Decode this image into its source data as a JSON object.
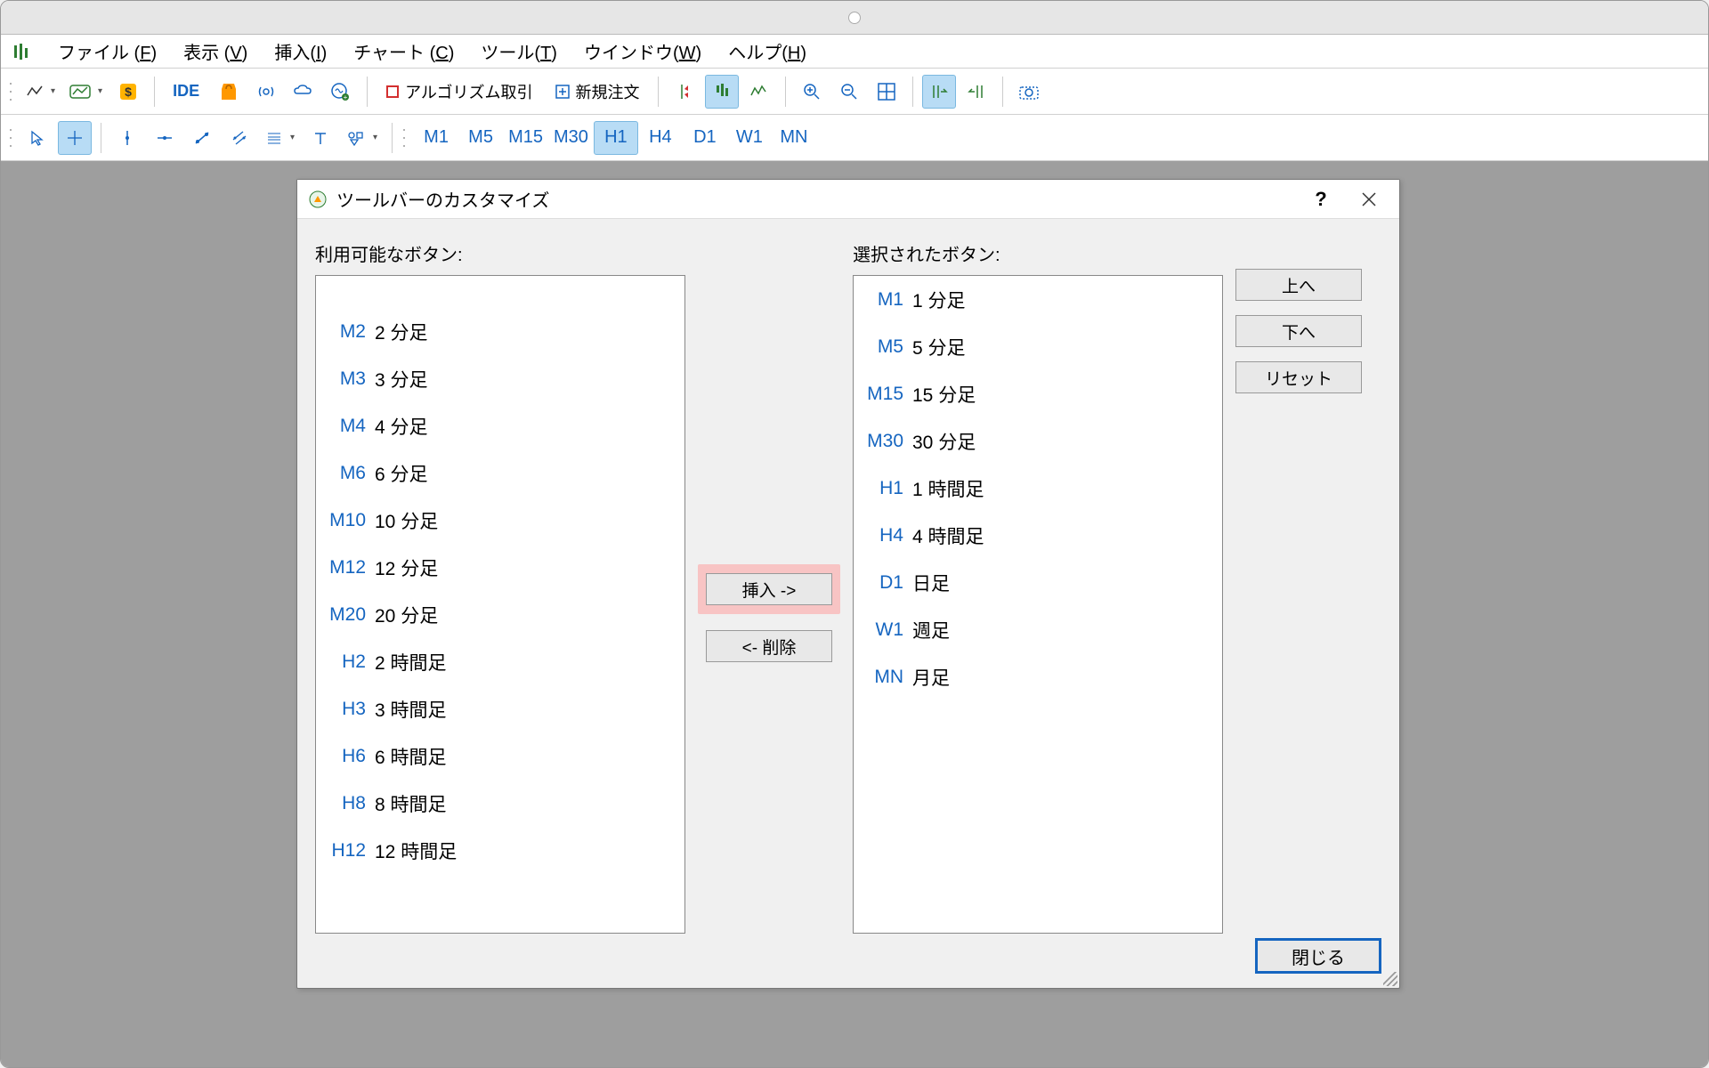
{
  "colors": {
    "accent": "#1565c0",
    "active_bg": "#b8dcf5",
    "active_border": "#7ab8e0",
    "highlight_bg": "#f8c4c4",
    "workspace_bg": "#9e9e9e",
    "dialog_bg": "#f0f0f0"
  },
  "menubar": {
    "items": [
      "ファイル (F)",
      "表示 (V)",
      "挿入(I)",
      "チャート (C)",
      "ツール(T)",
      "ウインドウ(W)",
      "ヘルプ(H)"
    ]
  },
  "toolbar1": {
    "ide_label": "IDE",
    "algo_label": "アルゴリズム取引",
    "new_order_label": "新規注文"
  },
  "timeframe_buttons": [
    "M1",
    "M5",
    "M15",
    "M30",
    "H1",
    "H4",
    "D1",
    "W1",
    "MN"
  ],
  "timeframe_active": "H1",
  "dialog": {
    "title": "ツールバーのカスタマイズ",
    "available_label": "利用可能なボタン:",
    "selected_label": "選択されたボタン:",
    "insert_label": "挿入 ->",
    "remove_label": "<- 削除",
    "up_label": "上へ",
    "down_label": "下へ",
    "reset_label": "リセット",
    "close_label": "閉じる",
    "available": [
      {
        "code": "M2",
        "desc": "2 分足"
      },
      {
        "code": "M3",
        "desc": "3 分足"
      },
      {
        "code": "M4",
        "desc": "4 分足"
      },
      {
        "code": "M6",
        "desc": "6 分足"
      },
      {
        "code": "M10",
        "desc": "10 分足"
      },
      {
        "code": "M12",
        "desc": "12 分足"
      },
      {
        "code": "M20",
        "desc": "20 分足"
      },
      {
        "code": "H2",
        "desc": "2 時間足"
      },
      {
        "code": "H3",
        "desc": "3 時間足"
      },
      {
        "code": "H6",
        "desc": "6 時間足"
      },
      {
        "code": "H8",
        "desc": "8 時間足"
      },
      {
        "code": "H12",
        "desc": "12 時間足"
      }
    ],
    "selected": [
      {
        "code": "M1",
        "desc": "1 分足"
      },
      {
        "code": "M5",
        "desc": "5 分足"
      },
      {
        "code": "M15",
        "desc": "15 分足"
      },
      {
        "code": "M30",
        "desc": "30 分足"
      },
      {
        "code": "H1",
        "desc": "1 時間足"
      },
      {
        "code": "H4",
        "desc": "4 時間足"
      },
      {
        "code": "D1",
        "desc": "日足"
      },
      {
        "code": "W1",
        "desc": "週足"
      },
      {
        "code": "MN",
        "desc": "月足"
      }
    ]
  }
}
